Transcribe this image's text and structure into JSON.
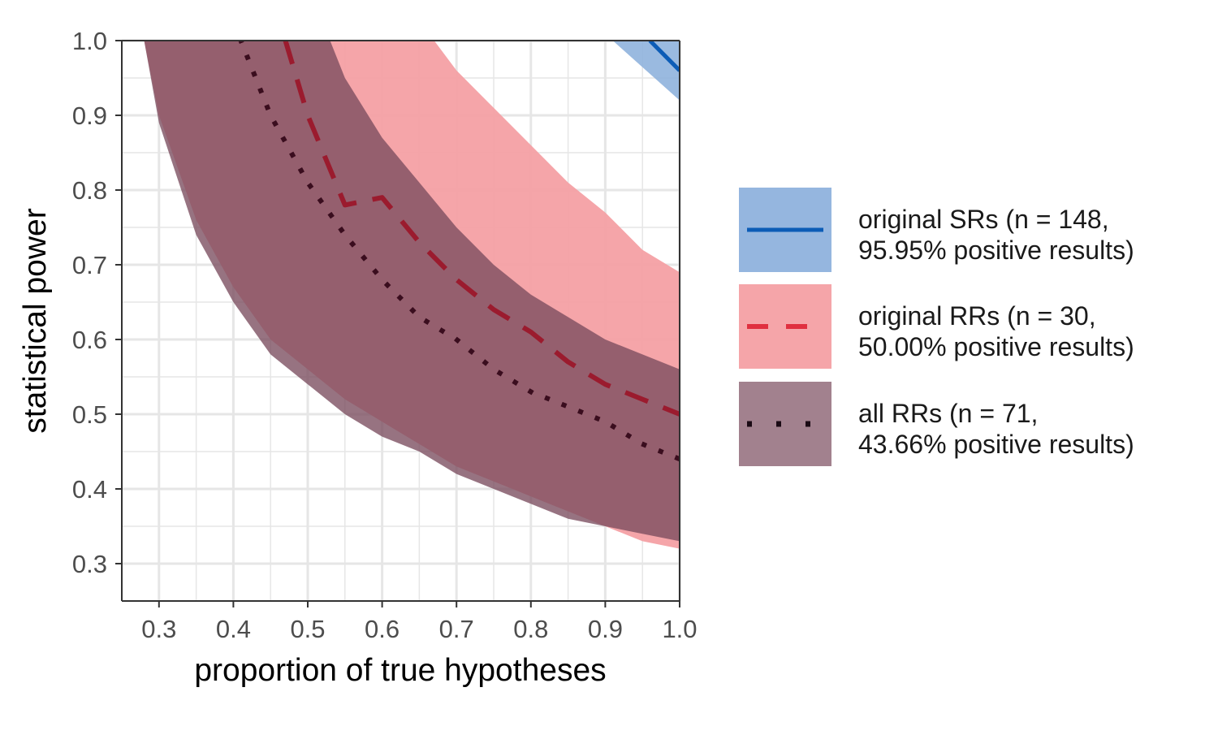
{
  "chart_data": {
    "type": "area",
    "title": "",
    "xlabel": "proportion of true hypotheses",
    "ylabel": "statistical power",
    "xlim": [
      0.25,
      1.0
    ],
    "ylim": [
      0.25,
      1.0
    ],
    "x_ticks": [
      "0.3",
      "0.4",
      "0.5",
      "0.6",
      "0.7",
      "0.8",
      "0.9",
      "1.0"
    ],
    "y_ticks": [
      "0.3",
      "0.4",
      "0.5",
      "0.6",
      "0.7",
      "0.8",
      "0.9",
      "1.0"
    ],
    "grid": true,
    "legend_position": "right",
    "colors": {
      "sr_band": "#8fb2dd",
      "sr_line": "#0c5cb6",
      "orr_band": "#f4a0a4",
      "orr_line": "#9b1b2e",
      "arr_band": "#7a4c5e",
      "arr_line": "#3a0d1e",
      "grid": "#e6e6e6",
      "axis": "#333333"
    },
    "series": [
      {
        "name": "original SRs (n = 148,",
        "name_line2": "95.95% positive results)",
        "line_style": "solid",
        "estimate": {
          "x": [
            0.96,
            1.0
          ],
          "y": [
            1.0,
            0.96
          ]
        },
        "band_upper": {
          "x": [
            0.91,
            1.0
          ],
          "y": [
            1.0,
            1.0
          ]
        },
        "band_lower": {
          "x": [
            0.91,
            1.0
          ],
          "y": [
            1.0,
            0.92
          ]
        }
      },
      {
        "name": "original RRs (n = 30,",
        "name_line2": "50.00% positive results)",
        "line_style": "dashed",
        "estimate": {
          "x": [
            0.47,
            0.5,
            0.55,
            0.6,
            0.65,
            0.7,
            0.75,
            0.8,
            0.85,
            0.9,
            0.95,
            1.0
          ],
          "y": [
            1.0,
            0.9,
            0.78,
            0.79,
            0.73,
            0.68,
            0.64,
            0.61,
            0.57,
            0.54,
            0.52,
            0.5
          ]
        },
        "band_upper": {
          "x": [
            0.67,
            0.7,
            0.75,
            0.8,
            0.85,
            0.9,
            0.95,
            1.0
          ],
          "y": [
            1.0,
            0.96,
            0.91,
            0.86,
            0.81,
            0.77,
            0.72,
            0.69
          ]
        },
        "band_lower": {
          "x": [
            0.28,
            0.3,
            0.35,
            0.4,
            0.45,
            0.5,
            0.55,
            0.6,
            0.65,
            0.7,
            0.75,
            0.8,
            0.85,
            0.9,
            0.95,
            1.0
          ],
          "y": [
            1.0,
            0.9,
            0.76,
            0.67,
            0.6,
            0.56,
            0.52,
            0.49,
            0.46,
            0.43,
            0.41,
            0.39,
            0.37,
            0.35,
            0.33,
            0.32
          ]
        }
      },
      {
        "name": "all RRs (n = 71,",
        "name_line2": "43.66% positive results)",
        "line_style": "dotted",
        "estimate": {
          "x": [
            0.41,
            0.45,
            0.5,
            0.55,
            0.6,
            0.65,
            0.7,
            0.75,
            0.8,
            0.85,
            0.9,
            0.95,
            1.0
          ],
          "y": [
            1.0,
            0.9,
            0.81,
            0.74,
            0.68,
            0.63,
            0.6,
            0.56,
            0.53,
            0.51,
            0.49,
            0.46,
            0.44
          ]
        },
        "band_upper": {
          "x": [
            0.53,
            0.55,
            0.6,
            0.65,
            0.7,
            0.75,
            0.8,
            0.85,
            0.9,
            0.95,
            1.0
          ],
          "y": [
            1.0,
            0.95,
            0.87,
            0.81,
            0.75,
            0.7,
            0.66,
            0.63,
            0.6,
            0.58,
            0.56
          ]
        },
        "band_lower": {
          "x": [
            0.28,
            0.3,
            0.35,
            0.4,
            0.45,
            0.5,
            0.55,
            0.6,
            0.65,
            0.7,
            0.75,
            0.8,
            0.85,
            0.9,
            0.95,
            1.0
          ],
          "y": [
            1.0,
            0.89,
            0.74,
            0.65,
            0.58,
            0.54,
            0.5,
            0.47,
            0.45,
            0.42,
            0.4,
            0.38,
            0.36,
            0.35,
            0.34,
            0.33
          ]
        }
      }
    ]
  }
}
